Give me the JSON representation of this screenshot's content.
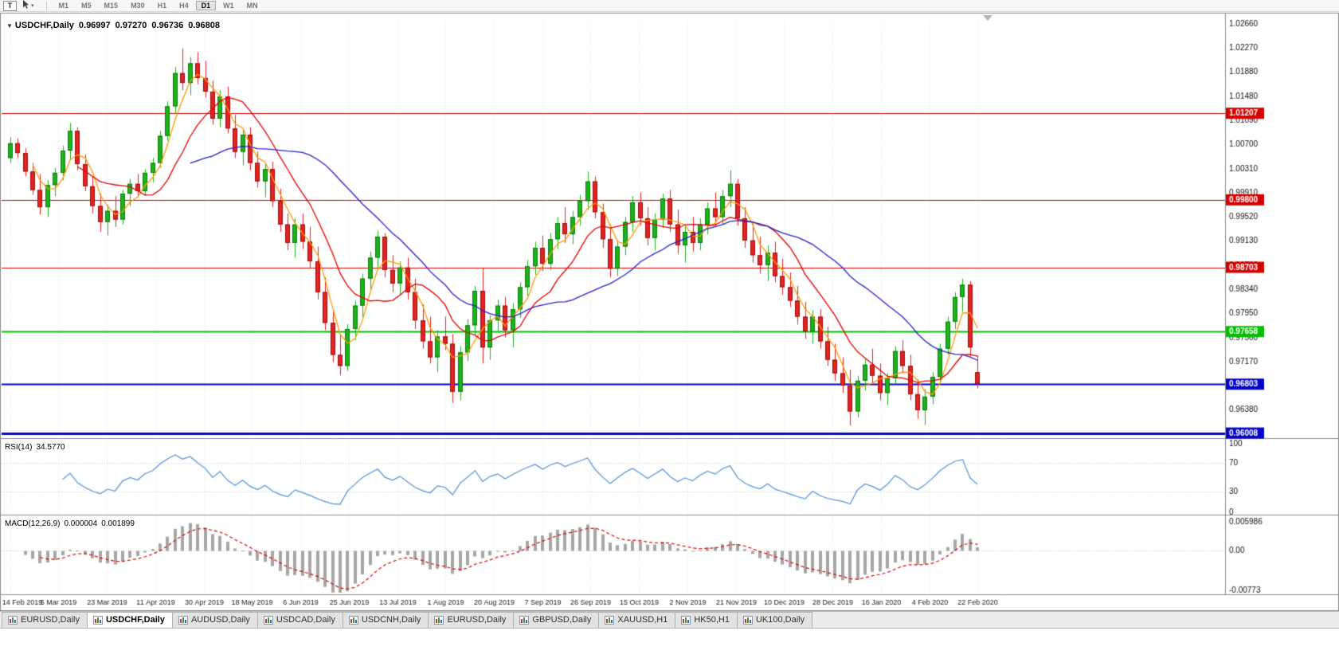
{
  "toolbar": {
    "text_tool_label": "T",
    "timeframes": [
      "M1",
      "M5",
      "M15",
      "M30",
      "H1",
      "H4",
      "D1",
      "W1",
      "MN"
    ],
    "active_timeframe": "D1"
  },
  "chart": {
    "collapse_glyph": "▼",
    "symbol_label": "USDCHF,Daily",
    "open": "0.96997",
    "high": "0.97270",
    "low": "0.96736",
    "close": "0.96808"
  },
  "rsi": {
    "label": "RSI(14)",
    "value": "34.5770",
    "axis_labels": [
      "100",
      "70",
      "30",
      "0"
    ],
    "levels": [
      70,
      30
    ],
    "color": "#4f93d6"
  },
  "macd": {
    "label": "MACD(12,26,9)",
    "value_main": "0.000004",
    "value_signal": "0.001899",
    "axis_top": "0.005986",
    "axis_zero": "0.00",
    "axis_bottom": "-0.00773",
    "range": [
      -0.00773,
      0.005986
    ],
    "histogram_color": "#a6a6a6",
    "signal_color": "#dd0000"
  },
  "tabs": {
    "items": [
      {
        "label": "EURUSD,Daily",
        "active": false
      },
      {
        "label": "USDCHF,Daily",
        "active": true
      },
      {
        "label": "AUDUSD,Daily",
        "active": false
      },
      {
        "label": "USDCAD,Daily",
        "active": false
      },
      {
        "label": "USDCNH,Daily",
        "active": false
      },
      {
        "label": "EURUSD,Daily",
        "active": false
      },
      {
        "label": "GBPUSD,Daily",
        "active": false
      },
      {
        "label": "XAUUSD,H1",
        "active": false
      },
      {
        "label": "HK50,H1",
        "active": false
      },
      {
        "label": "UK100,Daily",
        "active": false
      }
    ]
  },
  "chart_data": {
    "type": "candlestick",
    "symbol": "USDCHF",
    "timeframe": "Daily",
    "title": "USDCHF,Daily 0.96997 0.97270 0.96736 0.96808",
    "price_range": {
      "top": 1.0266,
      "bottom": 0.9599
    },
    "y_axis_labels": [
      "1.02660",
      "1.02270",
      "1.01880",
      "1.01480",
      "1.01090",
      "1.00700",
      "1.00310",
      "0.99910",
      "0.99520",
      "0.99130",
      "0.98730",
      "0.98340",
      "0.97950",
      "0.97560",
      "0.97170",
      "0.96770",
      "0.96380",
      "0.95990"
    ],
    "x_axis_labels": [
      "14 Feb 2019",
      "5 Mar 2019",
      "23 Mar 2019",
      "11 Apr 2019",
      "30 Apr 2019",
      "18 May 2019",
      "6 Jun 2019",
      "25 Jun 2019",
      "13 Jul 2019",
      "1 Aug 2019",
      "20 Aug 2019",
      "7 Sep 2019",
      "26 Sep 2019",
      "15 Oct 2019",
      "2 Nov 2019",
      "21 Nov 2019",
      "10 Dec 2019",
      "28 Dec 2019",
      "16 Jan 2020",
      "4 Feb 2020",
      "22 Feb 2020"
    ],
    "hlines": [
      {
        "value": 1.01207,
        "label": "1.01207",
        "color": "#d40000",
        "width": 1
      },
      {
        "value": 0.998,
        "label": "0.99800",
        "color": "#d40000",
        "width": 1
      },
      {
        "value": 0.98703,
        "label": "0.98703",
        "color": "#d40000",
        "width": 1
      },
      {
        "value": 0.97658,
        "label": "0.97658",
        "color": "#00c000",
        "width": 2
      },
      {
        "value": 0.96803,
        "label": "0.96803",
        "color": "#0202c8",
        "width": 2
      },
      {
        "value": 0.96008,
        "label": "0.96008",
        "color": "#0202c8",
        "width": 3
      }
    ],
    "bull_color": "#1cb21c",
    "bull_edge": "#0e7a0e",
    "bear_color": "#e32222",
    "bear_edge": "#9c0e0e",
    "grid_color": "#ebebeb",
    "frame_color": "#8c8c8c",
    "ma_lines": [
      {
        "period": 4,
        "color": "#ff9900"
      },
      {
        "period": 10,
        "color": "#e60000"
      },
      {
        "period": 25,
        "color": "#2222cc"
      }
    ],
    "candles": [
      [
        1.0048,
        1.0082,
        1.004,
        1.0072
      ],
      [
        1.0072,
        1.008,
        1.0048,
        1.0056
      ],
      [
        1.0056,
        1.0064,
        1.0018,
        1.0026
      ],
      [
        1.0026,
        1.004,
        0.9988,
        0.9996
      ],
      [
        0.9996,
        1.0022,
        0.9956,
        0.9968
      ],
      [
        0.9968,
        1.0012,
        0.9952,
        1.0004
      ],
      [
        1.0004,
        1.0032,
        0.9986,
        1.0024
      ],
      [
        1.0024,
        1.0068,
        1.0012,
        1.006
      ],
      [
        1.006,
        1.0105,
        1.0046,
        1.0092
      ],
      [
        1.0092,
        1.0098,
        1.0028,
        1.0038
      ],
      [
        1.0038,
        1.0054,
        0.9994,
        1.0002
      ],
      [
        1.0002,
        1.0018,
        0.9958,
        0.997
      ],
      [
        0.997,
        0.999,
        0.9928,
        0.9944
      ],
      [
        0.9944,
        0.9972,
        0.9922,
        0.9962
      ],
      [
        0.9962,
        0.9986,
        0.9936,
        0.9948
      ],
      [
        0.9948,
        0.9996,
        0.994,
        0.999
      ],
      [
        0.999,
        1.0014,
        0.997,
        1.0006
      ],
      [
        1.0006,
        1.0022,
        0.9984,
        0.9994
      ],
      [
        0.9994,
        1.003,
        0.9986,
        1.0024
      ],
      [
        1.0024,
        1.0048,
        1.0008,
        1.004
      ],
      [
        1.004,
        1.0092,
        1.0032,
        1.0084
      ],
      [
        1.0084,
        1.014,
        1.0076,
        1.0132
      ],
      [
        1.0132,
        1.0196,
        1.012,
        1.0186
      ],
      [
        1.0186,
        1.0226,
        1.0158,
        1.017
      ],
      [
        1.017,
        1.0212,
        1.015,
        1.0202
      ],
      [
        1.0202,
        1.022,
        1.0168,
        1.0178
      ],
      [
        1.0178,
        1.0206,
        1.0146,
        1.0156
      ],
      [
        1.0156,
        1.0174,
        1.0102,
        1.0112
      ],
      [
        1.0112,
        1.0158,
        1.0098,
        1.0148
      ],
      [
        1.0148,
        1.0164,
        1.0088,
        1.0096
      ],
      [
        1.0096,
        1.0118,
        1.0048,
        1.0058
      ],
      [
        1.0058,
        1.0094,
        1.0036,
        1.0086
      ],
      [
        1.0086,
        1.0098,
        1.0028,
        1.004
      ],
      [
        1.004,
        1.0058,
        1.0,
        1.001
      ],
      [
        1.001,
        1.004,
        0.9984,
        1.003
      ],
      [
        1.003,
        1.0042,
        0.9968,
        0.9978
      ],
      [
        0.9978,
        0.9998,
        0.9928,
        0.994
      ],
      [
        0.994,
        0.9958,
        0.9898,
        0.991
      ],
      [
        0.991,
        0.995,
        0.9886,
        0.994
      ],
      [
        0.994,
        0.9958,
        0.99,
        0.9912
      ],
      [
        0.9912,
        0.9936,
        0.9868,
        0.988
      ],
      [
        0.988,
        0.9904,
        0.9818,
        0.983
      ],
      [
        0.983,
        0.9854,
        0.9768,
        0.978
      ],
      [
        0.978,
        0.98,
        0.9716,
        0.9728
      ],
      [
        0.9728,
        0.976,
        0.9695,
        0.971
      ],
      [
        0.971,
        0.9778,
        0.9702,
        0.977
      ],
      [
        0.977,
        0.9816,
        0.9752,
        0.9808
      ],
      [
        0.9808,
        0.986,
        0.979,
        0.9852
      ],
      [
        0.9852,
        0.9896,
        0.9834,
        0.9886
      ],
      [
        0.9886,
        0.993,
        0.987,
        0.992
      ],
      [
        0.992,
        0.9926,
        0.9854,
        0.9866
      ],
      [
        0.9866,
        0.989,
        0.983,
        0.9844
      ],
      [
        0.9844,
        0.988,
        0.9826,
        0.987
      ],
      [
        0.987,
        0.9886,
        0.9818,
        0.983
      ],
      [
        0.983,
        0.9852,
        0.977,
        0.9784
      ],
      [
        0.9784,
        0.981,
        0.9738,
        0.975
      ],
      [
        0.975,
        0.979,
        0.9714,
        0.9724
      ],
      [
        0.9724,
        0.9768,
        0.97,
        0.9758
      ],
      [
        0.9758,
        0.979,
        0.9736,
        0.9746
      ],
      [
        0.9746,
        0.9762,
        0.965,
        0.9668
      ],
      [
        0.9668,
        0.9742,
        0.9654,
        0.9732
      ],
      [
        0.9732,
        0.9786,
        0.9718,
        0.9776
      ],
      [
        0.9776,
        0.984,
        0.976,
        0.9832
      ],
      [
        0.9832,
        0.987,
        0.9714,
        0.974
      ],
      [
        0.974,
        0.9792,
        0.972,
        0.9784
      ],
      [
        0.9784,
        0.9818,
        0.9764,
        0.9808
      ],
      [
        0.9808,
        0.9822,
        0.9756,
        0.9768
      ],
      [
        0.9768,
        0.9812,
        0.974,
        0.9802
      ],
      [
        0.9802,
        0.9846,
        0.9788,
        0.9838
      ],
      [
        0.9838,
        0.9882,
        0.9824,
        0.9872
      ],
      [
        0.9872,
        0.9912,
        0.9858,
        0.9902
      ],
      [
        0.9902,
        0.9922,
        0.9864,
        0.9876
      ],
      [
        0.9876,
        0.9926,
        0.9866,
        0.9916
      ],
      [
        0.9916,
        0.9952,
        0.99,
        0.9942
      ],
      [
        0.9942,
        0.9968,
        0.991,
        0.9924
      ],
      [
        0.9924,
        0.9962,
        0.9908,
        0.9952
      ],
      [
        0.9952,
        0.9988,
        0.9938,
        0.9978
      ],
      [
        0.9978,
        1.0026,
        0.9964,
        1.001
      ],
      [
        1.001,
        1.0018,
        0.995,
        0.996
      ],
      [
        0.996,
        0.9974,
        0.9902,
        0.9916
      ],
      [
        0.9916,
        0.994,
        0.9854,
        0.9868
      ],
      [
        0.9868,
        0.9914,
        0.9856,
        0.9904
      ],
      [
        0.9904,
        0.9952,
        0.989,
        0.9944
      ],
      [
        0.9944,
        0.9986,
        0.9928,
        0.9976
      ],
      [
        0.9976,
        0.9992,
        0.9938,
        0.995
      ],
      [
        0.995,
        0.9968,
        0.9906,
        0.9918
      ],
      [
        0.9918,
        0.9958,
        0.9898,
        0.9948
      ],
      [
        0.9948,
        0.999,
        0.9934,
        0.9982
      ],
      [
        0.9982,
        0.9996,
        0.9928,
        0.994
      ],
      [
        0.994,
        0.9964,
        0.9892,
        0.9906
      ],
      [
        0.9906,
        0.994,
        0.9878,
        0.9928
      ],
      [
        0.9928,
        0.9952,
        0.9896,
        0.991
      ],
      [
        0.991,
        0.995,
        0.9898,
        0.994
      ],
      [
        0.994,
        0.9976,
        0.9924,
        0.9966
      ],
      [
        0.9966,
        0.9992,
        0.9938,
        0.9952
      ],
      [
        0.9952,
        0.9996,
        0.994,
        0.9986
      ],
      [
        0.9986,
        1.0028,
        0.9968,
        1.0006
      ],
      [
        1.0006,
        1.0014,
        0.9938,
        0.995
      ],
      [
        0.995,
        0.9968,
        0.9902,
        0.9914
      ],
      [
        0.9914,
        0.9942,
        0.9878,
        0.989
      ],
      [
        0.989,
        0.992,
        0.986,
        0.9874
      ],
      [
        0.9874,
        0.9906,
        0.9848,
        0.9894
      ],
      [
        0.9894,
        0.9912,
        0.9846,
        0.9856
      ],
      [
        0.9856,
        0.9884,
        0.9826,
        0.9838
      ],
      [
        0.9838,
        0.9862,
        0.9806,
        0.9816
      ],
      [
        0.9816,
        0.984,
        0.9778,
        0.979
      ],
      [
        0.979,
        0.9814,
        0.9754,
        0.9766
      ],
      [
        0.9766,
        0.98,
        0.9746,
        0.979
      ],
      [
        0.979,
        0.9802,
        0.9738,
        0.975
      ],
      [
        0.975,
        0.9774,
        0.971,
        0.972
      ],
      [
        0.972,
        0.9746,
        0.9686,
        0.9698
      ],
      [
        0.9698,
        0.9724,
        0.9666,
        0.9678
      ],
      [
        0.9678,
        0.9704,
        0.9613,
        0.9636
      ],
      [
        0.9636,
        0.9694,
        0.9626,
        0.9686
      ],
      [
        0.9686,
        0.9722,
        0.967,
        0.9712
      ],
      [
        0.9712,
        0.9738,
        0.968,
        0.9694
      ],
      [
        0.9694,
        0.9714,
        0.9654,
        0.9666
      ],
      [
        0.9666,
        0.9698,
        0.9646,
        0.969
      ],
      [
        0.969,
        0.9742,
        0.968,
        0.9734
      ],
      [
        0.9734,
        0.9752,
        0.9698,
        0.971
      ],
      [
        0.971,
        0.9728,
        0.9654,
        0.9664
      ],
      [
        0.9664,
        0.9688,
        0.9624,
        0.9638
      ],
      [
        0.9638,
        0.9672,
        0.9614,
        0.966
      ],
      [
        0.966,
        0.97,
        0.9648,
        0.9692
      ],
      [
        0.9692,
        0.9746,
        0.9684,
        0.9738
      ],
      [
        0.9738,
        0.979,
        0.9728,
        0.9782
      ],
      [
        0.9782,
        0.983,
        0.977,
        0.9822
      ],
      [
        0.9822,
        0.9852,
        0.9798,
        0.9842
      ],
      [
        0.9842,
        0.9848,
        0.9726,
        0.974
      ],
      [
        0.96997,
        0.9727,
        0.96736,
        0.96808
      ]
    ]
  }
}
